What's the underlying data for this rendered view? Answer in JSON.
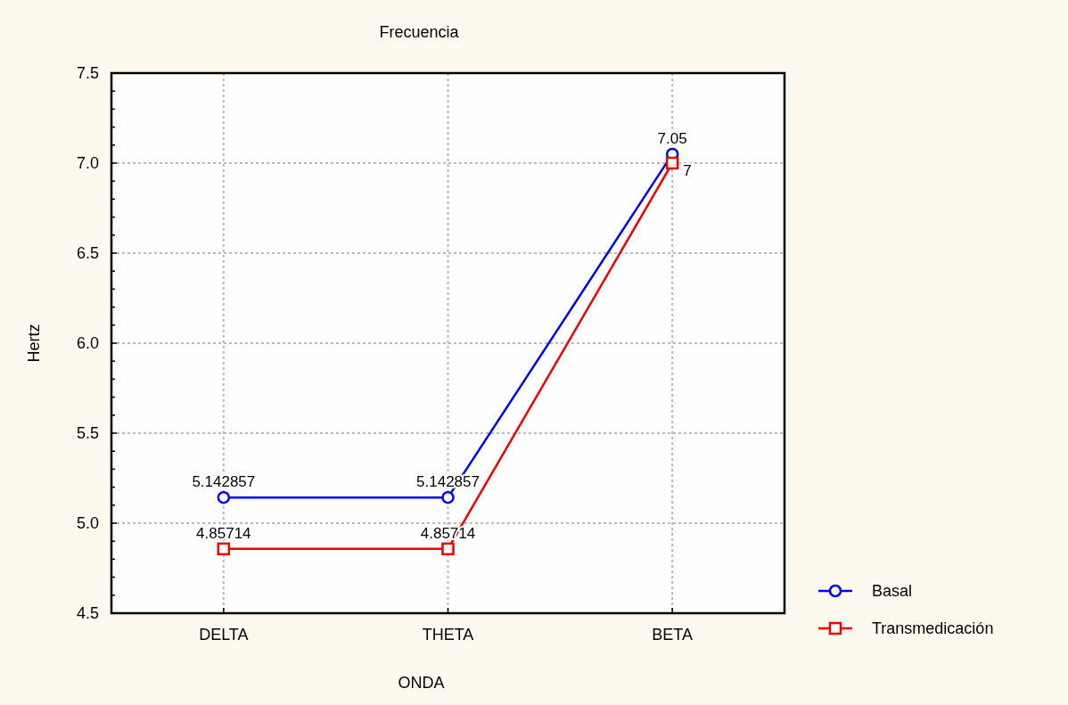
{
  "chart_data": {
    "type": "line",
    "title": "Frecuencia",
    "xlabel": "ONDA",
    "ylabel": "Hertz",
    "categories": [
      "DELTA",
      "THETA",
      "BETA"
    ],
    "series": [
      {
        "name": "Basal",
        "color": "#0000ee",
        "marker": "circle",
        "values": [
          5.142857,
          5.142857,
          7.05
        ]
      },
      {
        "name": "Transmedicación",
        "color": "#ee0000",
        "marker": "square",
        "values": [
          4.85714,
          4.85714,
          7
        ]
      }
    ],
    "ylim": [
      4.5,
      7.5
    ],
    "yticks": [
      4.5,
      {
        "value": 4.6,
        "label": null
      },
      {
        "value": 4.7,
        "label": null
      },
      {
        "value": 4.8,
        "label": null
      },
      {
        "value": 4.9,
        "label": null
      },
      "5.0",
      {
        "value": 5.1,
        "label": null
      },
      {
        "value": 5.2,
        "label": null
      },
      {
        "value": 5.3,
        "label": null
      },
      {
        "value": 5.4,
        "label": null
      },
      5.5,
      {
        "value": 5.6,
        "label": null
      },
      {
        "value": 5.7,
        "label": null
      },
      {
        "value": 5.8,
        "label": null
      },
      {
        "value": 5.9,
        "label": null
      },
      {
        "value": 6,
        "label": "6.0"
      },
      {
        "value": 6.1,
        "label": null
      },
      {
        "value": 6.2,
        "label": null
      },
      {
        "value": 6.3,
        "label": null
      },
      {
        "value": 6.4,
        "label": null
      },
      6.5,
      {
        "value": 6.6,
        "label": null
      },
      {
        "value": 6.7,
        "label": null
      },
      {
        "value": 6.8,
        "label": null
      },
      {
        "value": 6.9,
        "label": null
      },
      {
        "value": 7,
        "label": "7.0"
      },
      {
        "value": 7.1,
        "label": null
      },
      {
        "value": 7.2,
        "label": null
      },
      {
        "value": 7.3,
        "label": null
      },
      {
        "value": 7.4,
        "label": null
      },
      7.5
    ],
    "grid": true,
    "legend": "bottom right",
    "data_labels": true,
    "line_style": "solid"
  }
}
